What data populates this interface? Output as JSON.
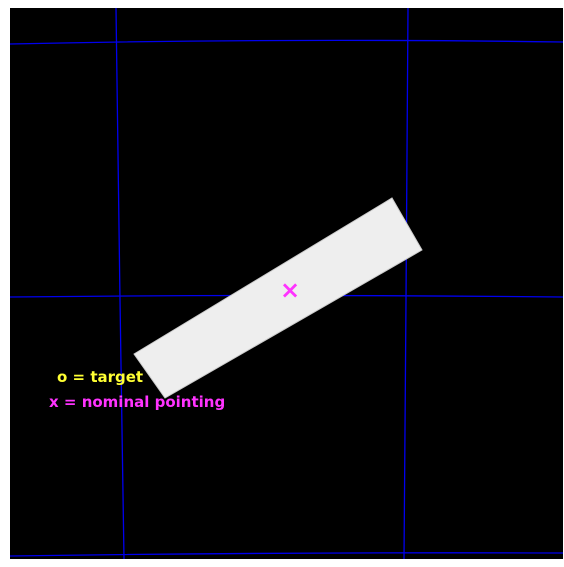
{
  "legend": {
    "target_label": "o = target",
    "pointing_label": "x = nominal pointing",
    "target_color": "#ffff33",
    "pointing_color": "#ff33ff"
  },
  "markers": {
    "pointing_glyph": "×"
  },
  "colors": {
    "background": "#000000",
    "frame": "#ffffff",
    "grid": "#0000ee",
    "detector_fill": "#eeeeee",
    "detector_edge": "#cccccc"
  }
}
